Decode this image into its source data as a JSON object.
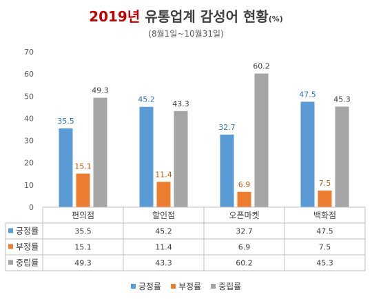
{
  "title": {
    "year": "2019년",
    "text": "유통업계 감성어 현황",
    "unit": "(%)"
  },
  "subtitle": "(8월1일~10월31일)",
  "chart_data": {
    "type": "bar",
    "categories": [
      "편의점",
      "할인점",
      "오픈마켓",
      "백화점"
    ],
    "series": [
      {
        "name": "긍정률",
        "color": "#5b9bd5",
        "label_color": "#2e75b6",
        "values": [
          35.5,
          45.2,
          32.7,
          47.5
        ]
      },
      {
        "name": "부정률",
        "color": "#ed7d31",
        "label_color": "#c55a11",
        "values": [
          15.1,
          11.4,
          6.9,
          7.5
        ]
      },
      {
        "name": "중립률",
        "color": "#a5a5a5",
        "label_color": "#404040",
        "values": [
          49.3,
          43.3,
          60.2,
          45.3
        ]
      }
    ],
    "ylim": [
      0,
      70
    ],
    "yticks": [
      0,
      10,
      20,
      30,
      40,
      50,
      60,
      70
    ],
    "grid": false,
    "data_table": true,
    "legend_position": "bottom"
  }
}
